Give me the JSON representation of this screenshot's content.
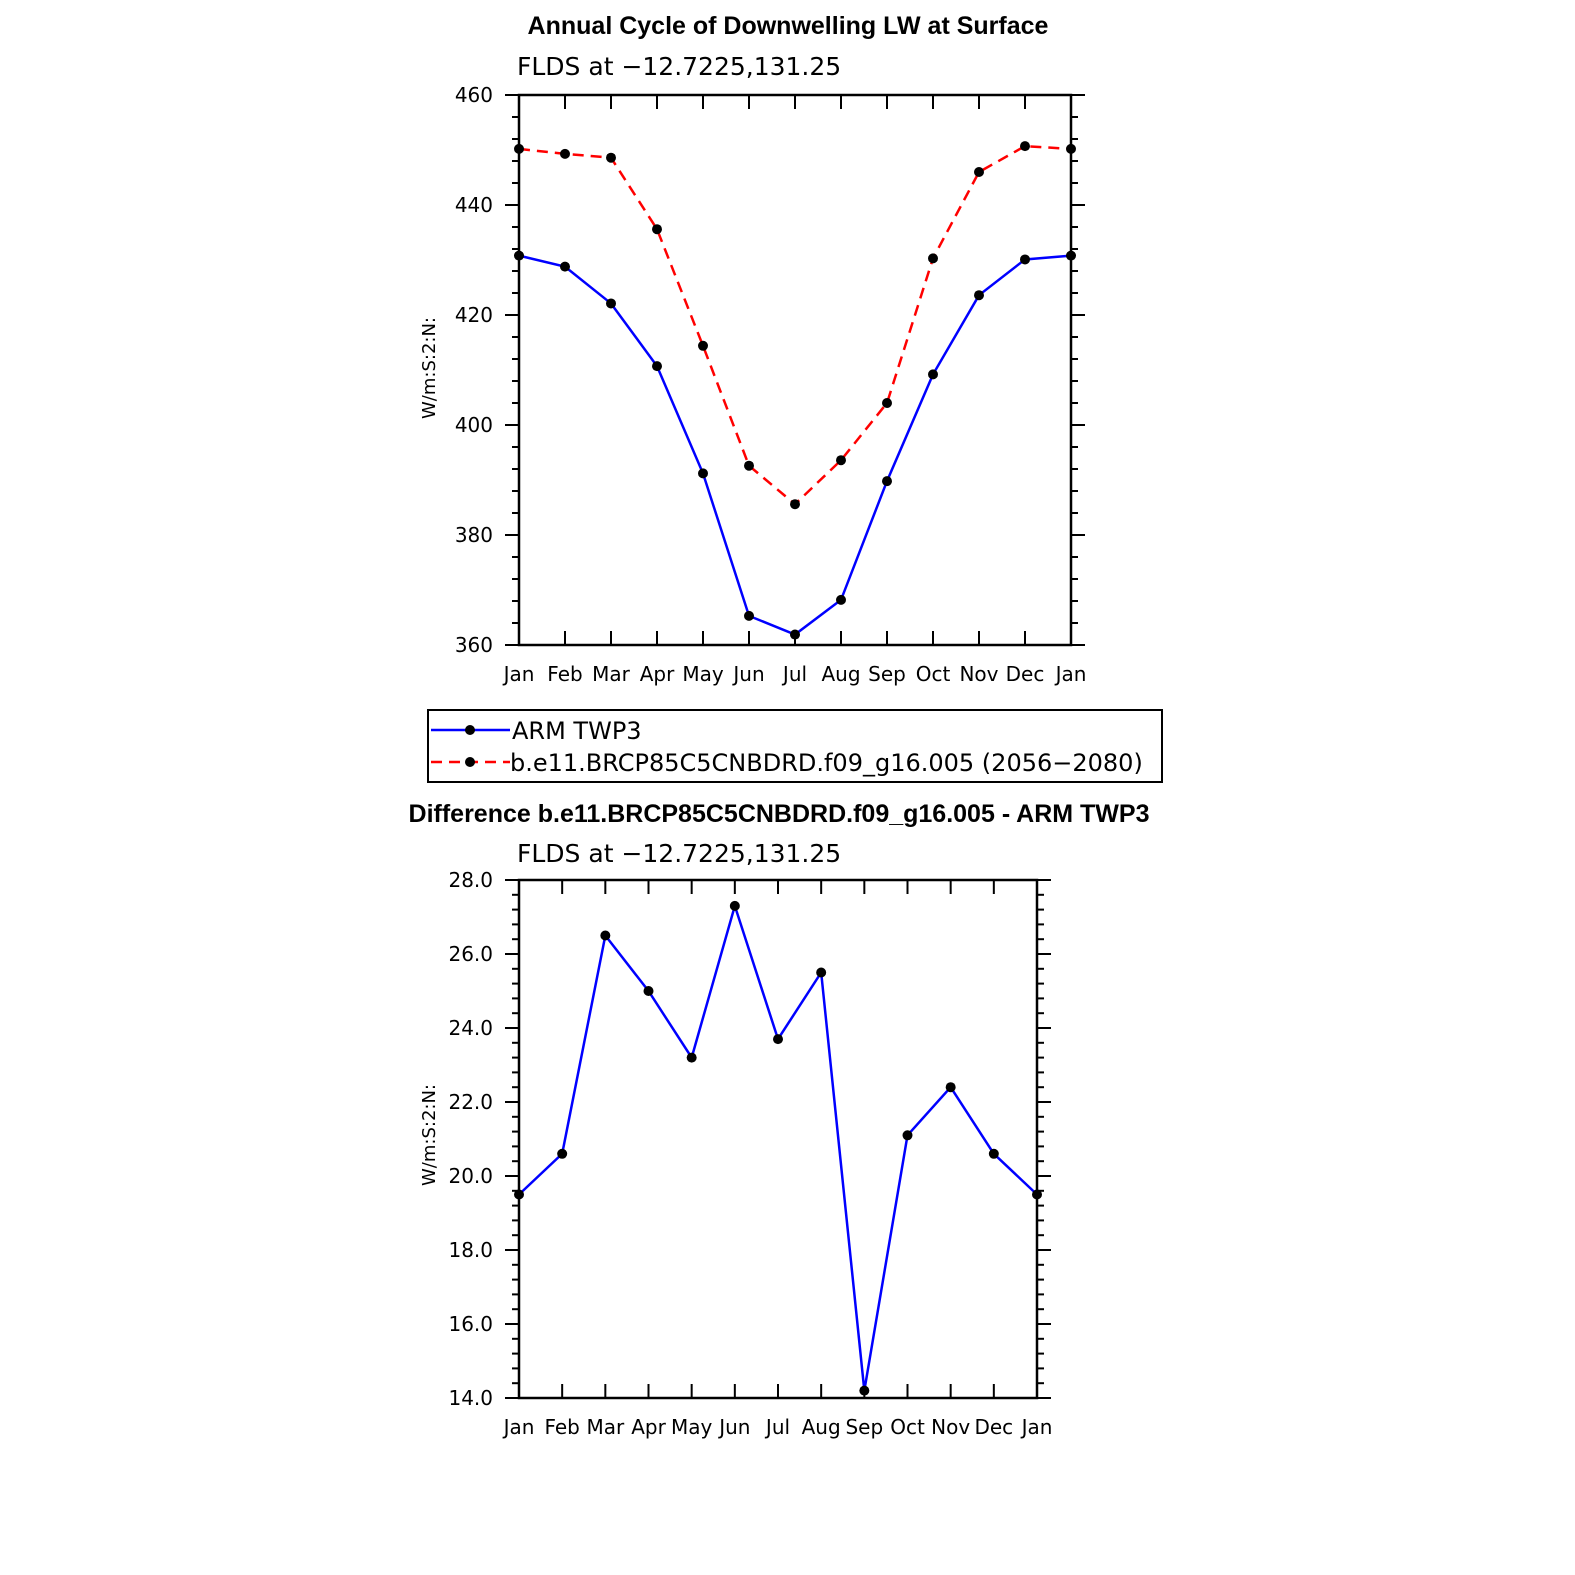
{
  "chart_data": [
    {
      "type": "line",
      "title": "Annual Cycle of Downwelling LW at Surface",
      "subtitle": "FLDS at −12.7225,131.25",
      "xlabel": "",
      "ylabel": "W/m:S:2:N:",
      "categories": [
        "Jan",
        "Feb",
        "Mar",
        "Apr",
        "May",
        "Jun",
        "Jul",
        "Aug",
        "Sep",
        "Oct",
        "Nov",
        "Dec",
        "Jan"
      ],
      "ylim": [
        360,
        460
      ],
      "yticks": [
        360,
        380,
        400,
        420,
        440,
        460
      ],
      "series": [
        {
          "name": "ARM TWP3",
          "color": "#0000ff",
          "dash": "solid",
          "values": [
            430.8,
            428.8,
            422.1,
            410.7,
            391.2,
            365.3,
            361.9,
            368.2,
            389.8,
            409.2,
            423.6,
            430.1,
            430.8
          ]
        },
        {
          "name": "b.e11.BRCP85C5CNBDRD.f09_g16.005 (2056−2080)",
          "color": "#ff0000",
          "dash": "dashed",
          "values": [
            450.2,
            449.3,
            448.6,
            435.6,
            414.4,
            392.6,
            385.6,
            393.6,
            404.0,
            430.3,
            446.0,
            450.7,
            450.2
          ]
        }
      ],
      "legend": "below"
    },
    {
      "type": "line",
      "title": "Difference b.e11.BRCP85C5CNBDRD.f09_g16.005 - ARM TWP3",
      "subtitle": "FLDS at −12.7225,131.25",
      "xlabel": "",
      "ylabel": "W/m:S:2:N:",
      "categories": [
        "Jan",
        "Feb",
        "Mar",
        "Apr",
        "May",
        "Jun",
        "Jul",
        "Aug",
        "Sep",
        "Oct",
        "Nov",
        "Dec",
        "Jan"
      ],
      "ylim": [
        14.0,
        28.0
      ],
      "yticks": [
        "14.0",
        "16.0",
        "18.0",
        "20.0",
        "22.0",
        "24.0",
        "26.0",
        "28.0"
      ],
      "series": [
        {
          "color": "#0000ff",
          "dash": "solid",
          "values": [
            19.5,
            20.6,
            26.5,
            25.0,
            23.2,
            27.3,
            23.7,
            25.5,
            14.2,
            21.1,
            22.4,
            20.6,
            19.5
          ]
        }
      ]
    }
  ]
}
